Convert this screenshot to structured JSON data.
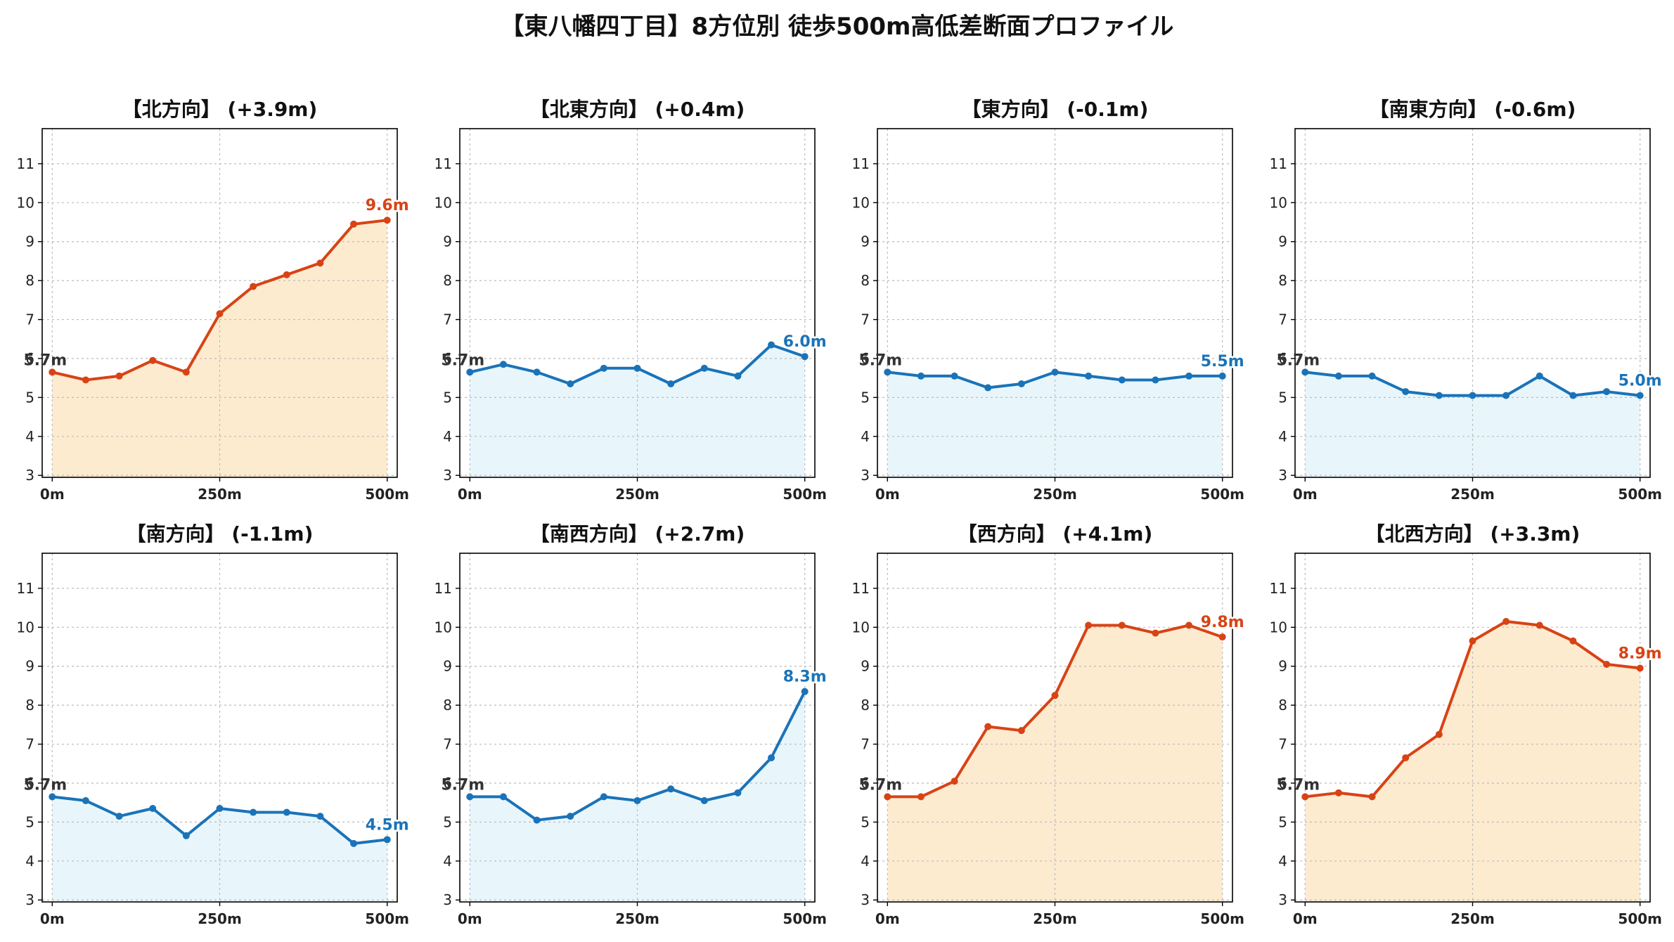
{
  "title": "【東八幡四丁目】8方位別 徒歩500m高低差断面プロファイル",
  "colors": {
    "up_line": "#d84315",
    "up_fill": "#fdebd0",
    "down_line": "#1a73b8",
    "down_fill": "#e8f6fc",
    "start_label": "#333333",
    "grid": "#bbbbbb",
    "axis": "#000000"
  },
  "chart_data": [
    {
      "type": "area",
      "title": "【北方向】 (+3.9m)",
      "trend": "up",
      "x": [
        0,
        50,
        100,
        150,
        200,
        250,
        300,
        350,
        400,
        450,
        500
      ],
      "y": [
        5.65,
        5.45,
        5.55,
        5.95,
        5.65,
        7.15,
        7.85,
        8.15,
        8.45,
        9.45,
        9.55
      ],
      "start_label": "5.7m",
      "end_label": "9.6m",
      "xticks": [
        "0m",
        "250m",
        "500m"
      ],
      "xtick_values": [
        0,
        250,
        500
      ],
      "yticks": [
        3,
        4,
        5,
        6,
        7,
        8,
        9,
        10,
        11
      ],
      "xlim": [
        -15,
        515
      ],
      "ylim": [
        2.95,
        11.9
      ],
      "grid": true
    },
    {
      "type": "area",
      "title": "【北東方向】 (+0.4m)",
      "trend": "down",
      "x": [
        0,
        50,
        100,
        150,
        200,
        250,
        300,
        350,
        400,
        450,
        500
      ],
      "y": [
        5.65,
        5.85,
        5.65,
        5.35,
        5.75,
        5.75,
        5.35,
        5.75,
        5.55,
        6.35,
        6.05
      ],
      "start_label": "5.7m",
      "end_label": "6.0m",
      "xticks": [
        "0m",
        "250m",
        "500m"
      ],
      "xtick_values": [
        0,
        250,
        500
      ],
      "yticks": [
        3,
        4,
        5,
        6,
        7,
        8,
        9,
        10,
        11
      ],
      "xlim": [
        -15,
        515
      ],
      "ylim": [
        2.95,
        11.9
      ],
      "grid": true
    },
    {
      "type": "area",
      "title": "【東方向】 (-0.1m)",
      "trend": "down",
      "x": [
        0,
        50,
        100,
        150,
        200,
        250,
        300,
        350,
        400,
        450,
        500
      ],
      "y": [
        5.65,
        5.55,
        5.55,
        5.25,
        5.35,
        5.65,
        5.55,
        5.45,
        5.45,
        5.55,
        5.55
      ],
      "start_label": "5.7m",
      "end_label": "5.5m",
      "xticks": [
        "0m",
        "250m",
        "500m"
      ],
      "xtick_values": [
        0,
        250,
        500
      ],
      "yticks": [
        3,
        4,
        5,
        6,
        7,
        8,
        9,
        10,
        11
      ],
      "xlim": [
        -15,
        515
      ],
      "ylim": [
        2.95,
        11.9
      ],
      "grid": true
    },
    {
      "type": "area",
      "title": "【南東方向】 (-0.6m)",
      "trend": "down",
      "x": [
        0,
        50,
        100,
        150,
        200,
        250,
        300,
        350,
        400,
        450,
        500
      ],
      "y": [
        5.65,
        5.55,
        5.55,
        5.15,
        5.05,
        5.05,
        5.05,
        5.55,
        5.05,
        5.15,
        5.05
      ],
      "start_label": "5.7m",
      "end_label": "5.0m",
      "xticks": [
        "0m",
        "250m",
        "500m"
      ],
      "xtick_values": [
        0,
        250,
        500
      ],
      "yticks": [
        3,
        4,
        5,
        6,
        7,
        8,
        9,
        10,
        11
      ],
      "xlim": [
        -15,
        515
      ],
      "ylim": [
        2.95,
        11.9
      ],
      "grid": true
    },
    {
      "type": "area",
      "title": "【南方向】 (-1.1m)",
      "trend": "down",
      "x": [
        0,
        50,
        100,
        150,
        200,
        250,
        300,
        350,
        400,
        450,
        500
      ],
      "y": [
        5.65,
        5.55,
        5.15,
        5.35,
        4.65,
        5.35,
        5.25,
        5.25,
        5.15,
        4.45,
        4.55
      ],
      "start_label": "5.7m",
      "end_label": "4.5m",
      "xticks": [
        "0m",
        "250m",
        "500m"
      ],
      "xtick_values": [
        0,
        250,
        500
      ],
      "yticks": [
        3,
        4,
        5,
        6,
        7,
        8,
        9,
        10,
        11
      ],
      "xlim": [
        -15,
        515
      ],
      "ylim": [
        2.95,
        11.9
      ],
      "grid": true
    },
    {
      "type": "area",
      "title": "【南西方向】 (+2.7m)",
      "trend": "down",
      "x": [
        0,
        50,
        100,
        150,
        200,
        250,
        300,
        350,
        400,
        450,
        500
      ],
      "y": [
        5.65,
        5.65,
        5.05,
        5.15,
        5.65,
        5.55,
        5.85,
        5.55,
        5.75,
        6.65,
        8.35
      ],
      "start_label": "5.7m",
      "end_label": "8.3m",
      "xticks": [
        "0m",
        "250m",
        "500m"
      ],
      "xtick_values": [
        0,
        250,
        500
      ],
      "yticks": [
        3,
        4,
        5,
        6,
        7,
        8,
        9,
        10,
        11
      ],
      "xlim": [
        -15,
        515
      ],
      "ylim": [
        2.95,
        11.9
      ],
      "grid": true
    },
    {
      "type": "area",
      "title": "【西方向】 (+4.1m)",
      "trend": "up",
      "x": [
        0,
        50,
        100,
        150,
        200,
        250,
        300,
        350,
        400,
        450,
        500
      ],
      "y": [
        5.65,
        5.65,
        6.05,
        7.45,
        7.35,
        8.25,
        10.05,
        10.05,
        9.85,
        10.05,
        9.75
      ],
      "start_label": "5.7m",
      "end_label": "9.8m",
      "xticks": [
        "0m",
        "250m",
        "500m"
      ],
      "xtick_values": [
        0,
        250,
        500
      ],
      "yticks": [
        3,
        4,
        5,
        6,
        7,
        8,
        9,
        10,
        11
      ],
      "xlim": [
        -15,
        515
      ],
      "ylim": [
        2.95,
        11.9
      ],
      "grid": true
    },
    {
      "type": "area",
      "title": "【北西方向】 (+3.3m)",
      "trend": "up",
      "x": [
        0,
        50,
        100,
        150,
        200,
        250,
        300,
        350,
        400,
        450,
        500
      ],
      "y": [
        5.65,
        5.75,
        5.65,
        6.65,
        7.25,
        9.65,
        10.15,
        10.05,
        9.65,
        9.05,
        8.95
      ],
      "start_label": "5.7m",
      "end_label": "8.9m",
      "xticks": [
        "0m",
        "250m",
        "500m"
      ],
      "xtick_values": [
        0,
        250,
        500
      ],
      "yticks": [
        3,
        4,
        5,
        6,
        7,
        8,
        9,
        10,
        11
      ],
      "xlim": [
        -15,
        515
      ],
      "ylim": [
        2.95,
        11.9
      ],
      "grid": true
    }
  ]
}
